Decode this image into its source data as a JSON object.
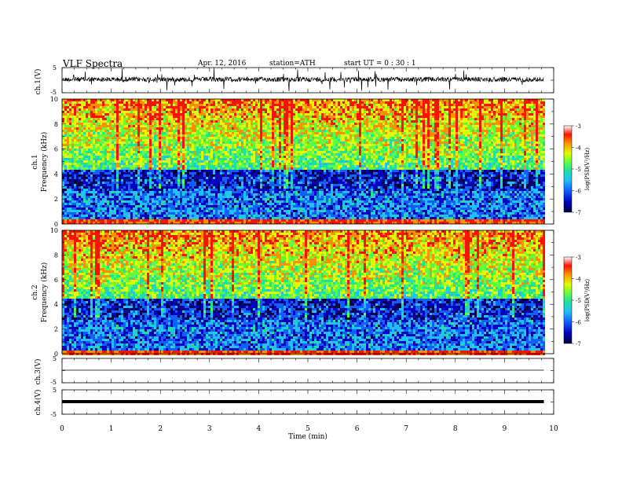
{
  "header": {
    "title": "VLF  Spectra",
    "date": "Apr. 12, 2016",
    "station": "station=ATH",
    "start": "start  UT  =    0  : 30 : 1"
  },
  "colors": {
    "background": "#ffffff",
    "axes": "#000000",
    "colormap": [
      "#000040",
      "#0000c0",
      "#1060ff",
      "#20c0ff",
      "#20e0a0",
      "#60ff40",
      "#e0ff00",
      "#ff9000",
      "#ff1000",
      "#ffffff"
    ]
  },
  "chart_data": [
    {
      "type": "line",
      "panel": "ch1-waveform",
      "ylabel": "ch.1(V)",
      "yticks": [
        "5",
        "-5"
      ],
      "ylim": [
        -5,
        5
      ],
      "xlim": [
        0,
        10
      ],
      "series": [
        {
          "values_description": null,
          "y": [
            0.0
          ]
        }
      ]
    },
    {
      "type": "heatmap",
      "panel": "ch1-spectrogram",
      "ylabel_top": "ch.1",
      "ylabel": "Frequency  (kHz)",
      "yticks": [
        "0",
        "2",
        "4",
        "6",
        "8",
        "10"
      ],
      "ylim": [
        0,
        10
      ],
      "xlim": [
        0,
        9.8
      ],
      "colorbar": {
        "label": "log(PSD(V²/Hz)",
        "ticks": [
          "-3",
          "-4",
          "-5",
          "-6",
          "-7"
        ],
        "range": [
          -7,
          -3
        ]
      }
    },
    {
      "type": "heatmap",
      "panel": "ch2-spectrogram",
      "ylabel_top": "ch.2",
      "ylabel": "Frequency  (kHz)",
      "yticks": [
        "0",
        "2",
        "4",
        "6",
        "8",
        "10"
      ],
      "ylim": [
        0,
        10
      ],
      "xlim": [
        0,
        9.8
      ],
      "colorbar": {
        "label": "log(PSD(V²/Hz)",
        "ticks": [
          "-3",
          "-4",
          "-5",
          "-6",
          "-7"
        ],
        "range": [
          -7,
          -3
        ]
      }
    },
    {
      "type": "line",
      "panel": "ch3-waveform",
      "ylabel": "ch.3(V)",
      "yticks": [
        "5",
        "-5"
      ],
      "ylim": [
        -5,
        5
      ],
      "xlim": [
        0,
        10
      ],
      "series": [
        {
          "y": [
            0.0
          ]
        }
      ]
    },
    {
      "type": "line",
      "panel": "ch4-waveform",
      "ylabel": "ch.4(V)",
      "yticks": [
        "5",
        "-5"
      ],
      "ylim": [
        -5,
        5
      ],
      "xlim": [
        0,
        10
      ],
      "series": [
        {
          "y": [
            0.0
          ]
        }
      ],
      "xlabel": "Time  (min)",
      "xticks": [
        "0",
        "1",
        "2",
        "3",
        "4",
        "5",
        "6",
        "7",
        "8",
        "9",
        "10"
      ]
    }
  ]
}
